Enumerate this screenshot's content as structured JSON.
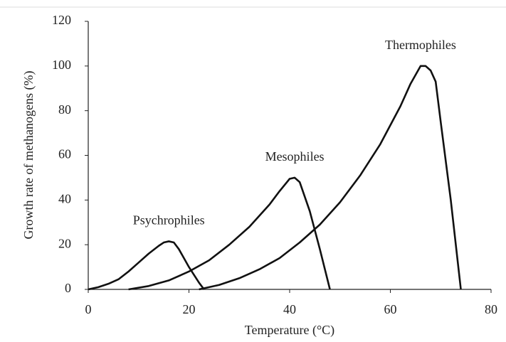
{
  "chart_data": {
    "type": "line",
    "x_label": "Temperature (°C)",
    "y_label": "Growth rate of methanogens (%)",
    "xlim": [
      0,
      80
    ],
    "xticks": [
      0,
      20,
      40,
      60,
      80
    ],
    "ylim": [
      0,
      120
    ],
    "yticks": [
      0,
      20,
      40,
      60,
      80,
      100,
      120
    ],
    "series": [
      {
        "name": "Psychrophiles",
        "color": "#111111",
        "x": [
          0,
          2,
          4,
          6,
          8,
          10,
          12,
          14,
          15,
          16,
          17,
          18,
          20,
          22,
          23
        ],
        "values": [
          0,
          1,
          2.5,
          4.5,
          8,
          12,
          16,
          19.5,
          21,
          21.5,
          21,
          18,
          10,
          3,
          0
        ]
      },
      {
        "name": "Mesophiles",
        "color": "#111111",
        "x": [
          8,
          12,
          16,
          20,
          24,
          28,
          32,
          36,
          38,
          40,
          41,
          42,
          44,
          46,
          48
        ],
        "values": [
          0,
          1.5,
          4,
          8,
          13,
          20,
          28,
          38,
          44,
          49.5,
          50,
          48,
          35,
          18,
          0
        ]
      },
      {
        "name": "Thermophiles",
        "color": "#111111",
        "x": [
          22,
          26,
          30,
          34,
          38,
          42,
          46,
          50,
          54,
          58,
          62,
          64,
          66,
          67,
          68,
          69,
          70,
          72,
          74
        ],
        "values": [
          0,
          2,
          5,
          9,
          14,
          21,
          29,
          39,
          51,
          65,
          82,
          92,
          100,
          100,
          98,
          93,
          75,
          40,
          0
        ]
      }
    ]
  }
}
